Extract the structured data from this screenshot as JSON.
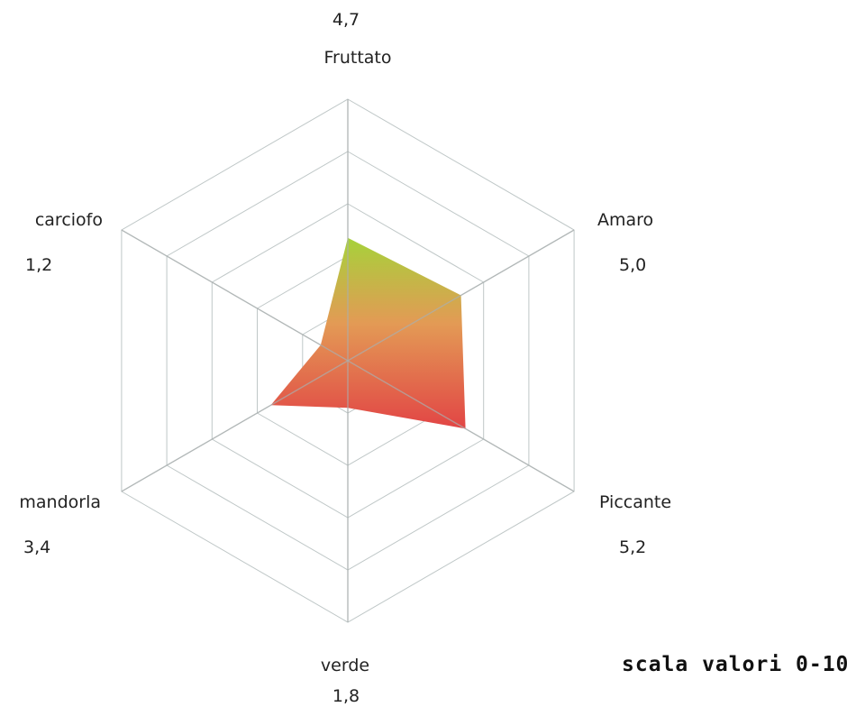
{
  "chart_data": {
    "type": "radar",
    "scale_range": [
      0,
      10
    ],
    "grid": true,
    "categories": [
      "Fruttato",
      "Amaro",
      "Piccante",
      "verde",
      "mandorla",
      "carciofo"
    ],
    "values": [
      4.7,
      5.0,
      5.2,
      1.8,
      3.4,
      1.2
    ],
    "value_labels": [
      "4,7",
      "5,0",
      "5,2",
      "1,8",
      "3,4",
      "1,2"
    ],
    "fill_gradient": [
      "#a6d23a",
      "#e24545"
    ],
    "grid_color": "#bfc7c7"
  },
  "footer": {
    "scale_note": "scala valori 0-10"
  }
}
